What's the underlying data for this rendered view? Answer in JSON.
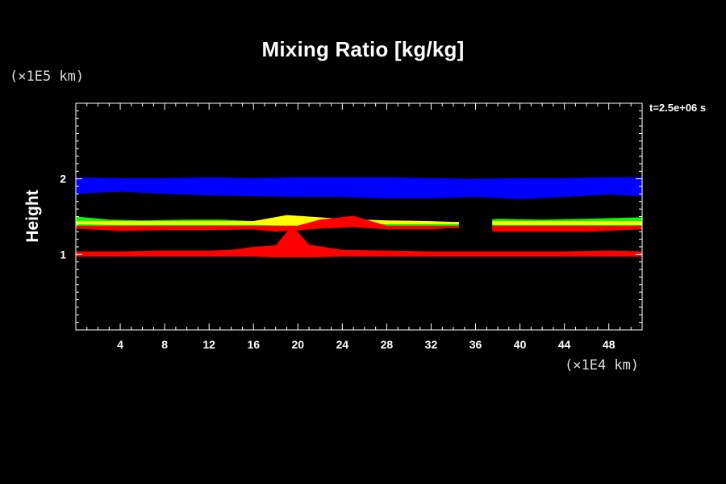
{
  "chart_data": {
    "type": "heatmap",
    "title": "Mixing Ratio [kg/kg]",
    "ylabel": "Height",
    "yunit": "(×1E5 km)",
    "xunit": "(×1E4 km)",
    "time_label": "t=2.5e+06 s",
    "xlim": [
      0,
      51
    ],
    "ylim": [
      0,
      3
    ],
    "x_ticks": [
      4,
      8,
      12,
      16,
      20,
      24,
      28,
      32,
      36,
      40,
      44,
      48
    ],
    "y_ticks": [
      1,
      2
    ],
    "x_minor_step": 1,
    "y_minor_step": 0.1,
    "background": "#000000",
    "bands": [
      {
        "name": "blue",
        "color": "#0000ff",
        "x": [
          0,
          4,
          8,
          12,
          16,
          20,
          24,
          28,
          32,
          36,
          40,
          44,
          48,
          51
        ],
        "top": [
          2.02,
          2.01,
          2.01,
          2.02,
          2.01,
          2.02,
          2.02,
          2.02,
          2.01,
          2.0,
          2.01,
          2.01,
          2.02,
          2.02
        ],
        "bottom": [
          1.8,
          1.83,
          1.8,
          1.78,
          1.77,
          1.76,
          1.76,
          1.74,
          1.74,
          1.76,
          1.73,
          1.76,
          1.79,
          1.77
        ]
      },
      {
        "name": "green",
        "color": "#00ff00",
        "x": [
          0,
          3,
          6,
          10,
          13,
          16,
          20,
          24,
          28,
          32,
          34,
          38,
          42,
          46,
          51
        ],
        "top": [
          1.5,
          1.46,
          1.45,
          1.46,
          1.46,
          1.44,
          1.5,
          1.46,
          1.44,
          1.42,
          1.41,
          1.47,
          1.46,
          1.47,
          1.49
        ],
        "bottom": [
          1.37,
          1.37,
          1.37,
          1.37,
          1.37,
          1.37,
          1.37,
          1.37,
          1.37,
          1.37,
          1.37,
          1.37,
          1.37,
          1.37,
          1.37
        ]
      },
      {
        "name": "yellow",
        "color": "#ffff00",
        "x": [
          0,
          4,
          8,
          12,
          16,
          19,
          21,
          24,
          28,
          32,
          34,
          38,
          42,
          46,
          51
        ],
        "top": [
          1.44,
          1.44,
          1.44,
          1.44,
          1.44,
          1.52,
          1.5,
          1.47,
          1.45,
          1.44,
          1.43,
          1.44,
          1.44,
          1.44,
          1.44
        ],
        "bottom": [
          1.4,
          1.39,
          1.39,
          1.39,
          1.39,
          1.38,
          1.38,
          1.4,
          1.4,
          1.4,
          1.4,
          1.39,
          1.39,
          1.39,
          1.39
        ]
      },
      {
        "name": "red-upper",
        "color": "#ff0000",
        "x": [
          0,
          4,
          8,
          12,
          16,
          18,
          20,
          22,
          25,
          28,
          32,
          34,
          38,
          42,
          46,
          51
        ],
        "top": [
          1.38,
          1.38,
          1.38,
          1.38,
          1.38,
          1.38,
          1.38,
          1.46,
          1.51,
          1.38,
          1.38,
          1.38,
          1.38,
          1.38,
          1.38,
          1.38
        ],
        "bottom": [
          1.34,
          1.31,
          1.32,
          1.32,
          1.33,
          1.3,
          1.32,
          1.34,
          1.36,
          1.33,
          1.33,
          1.35,
          1.3,
          1.3,
          1.3,
          1.33
        ]
      },
      {
        "name": "red-lower",
        "color": "#ff0000",
        "x": [
          0,
          4,
          8,
          12,
          14,
          16,
          18,
          19.5,
          21,
          24,
          28,
          32,
          36,
          40,
          44,
          48,
          51
        ],
        "top": [
          1.04,
          1.04,
          1.05,
          1.05,
          1.06,
          1.1,
          1.12,
          1.38,
          1.13,
          1.06,
          1.05,
          1.04,
          1.04,
          1.04,
          1.04,
          1.05,
          1.04
        ],
        "bottom": [
          0.97,
          0.97,
          0.97,
          0.97,
          0.97,
          0.97,
          0.96,
          0.96,
          0.96,
          0.97,
          0.97,
          0.97,
          0.97,
          0.97,
          0.97,
          0.97,
          0.97
        ]
      }
    ],
    "gaps": [
      {
        "color": "#000000",
        "x": [
          34.5,
          37.5
        ],
        "y": [
          1.3,
          1.46
        ]
      }
    ]
  }
}
